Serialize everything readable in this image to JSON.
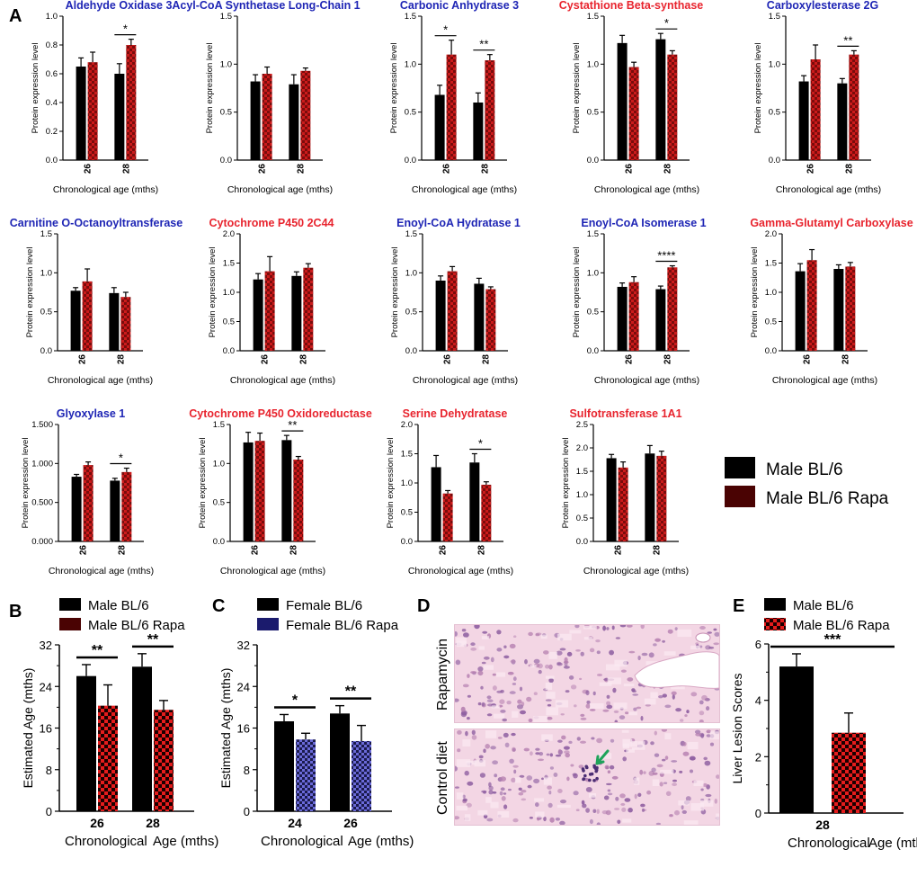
{
  "panel_labels": {
    "a": "A",
    "b": "B",
    "c": "C",
    "d": "D",
    "e": "E"
  },
  "colors": {
    "black_bar": "#000000",
    "rapa_red": "#cc1b1b",
    "rapa_dark": "#4a0303",
    "rapa_blue": "#3a3a8c",
    "title_blue": "#1f26b5",
    "title_red": "#e8242e",
    "lesion_arrow": "#1fa35a"
  },
  "common": {
    "ylabel": "Protein expression level",
    "xlabel": "Chronological age (mths)",
    "age_26": "26",
    "age_28": "28"
  },
  "legend_a": {
    "male": "Male BL/6",
    "male_rapa": "Male BL/6 Rapa"
  },
  "chart_data": [
    {
      "type": "bar",
      "title": "Aldehyde  Oxidase 3",
      "title_color": "blue",
      "categories": [
        "26",
        "28"
      ],
      "ylim": [
        0,
        1.0
      ],
      "yticks": [
        "0.0",
        "0.2",
        "0.4",
        "0.6",
        "0.8",
        "1.0"
      ],
      "tick_values": [
        0,
        0.2,
        0.4,
        0.6,
        0.8,
        1.0
      ],
      "series": [
        {
          "name": "Male BL/6",
          "values": [
            0.65,
            0.6
          ],
          "errors": [
            0.06,
            0.07
          ]
        },
        {
          "name": "Male BL/6 Rapa",
          "values": [
            0.68,
            0.8
          ],
          "errors": [
            0.07,
            0.04
          ]
        }
      ],
      "sig": [
        {
          "group": 1,
          "label": "*"
        }
      ],
      "xlabel": "Chronological age (mths)",
      "ylabel": "Protein expression level"
    },
    {
      "type": "bar",
      "title": "Acyl-CoA Synthetase Long-Chain 1",
      "title_color": "blue",
      "categories": [
        "26",
        "28"
      ],
      "ylim": [
        0,
        1.5
      ],
      "yticks": [
        "0.0",
        "0.5",
        "1.0",
        "1.5"
      ],
      "tick_values": [
        0,
        0.5,
        1.0,
        1.5
      ],
      "series": [
        {
          "name": "Male BL/6",
          "values": [
            0.82,
            0.79
          ],
          "errors": [
            0.07,
            0.1
          ]
        },
        {
          "name": "Male BL/6 Rapa",
          "values": [
            0.9,
            0.93
          ],
          "errors": [
            0.07,
            0.03
          ]
        }
      ],
      "sig": [],
      "xlabel": "Chronological age (mths)",
      "ylabel": "Protein expression level"
    },
    {
      "type": "bar",
      "title": "Carbonic  Anhydrase 3",
      "title_color": "blue",
      "categories": [
        "26",
        "28"
      ],
      "ylim": [
        0,
        1.5
      ],
      "yticks": [
        "0.0",
        "0.5",
        "1.0",
        "1.5"
      ],
      "tick_values": [
        0,
        0.5,
        1.0,
        1.5
      ],
      "series": [
        {
          "name": "Male BL/6",
          "values": [
            0.68,
            0.6
          ],
          "errors": [
            0.1,
            0.1
          ]
        },
        {
          "name": "Male BL/6 Rapa",
          "values": [
            1.1,
            1.04
          ],
          "errors": [
            0.15,
            0.06
          ]
        }
      ],
      "sig": [
        {
          "group": 0,
          "label": "*"
        },
        {
          "group": 1,
          "label": "**"
        }
      ],
      "xlabel": "Chronological age (mths)",
      "ylabel": "Protein expression level"
    },
    {
      "type": "bar",
      "title": "Cystathione Beta-synthase",
      "title_color": "red",
      "categories": [
        "26",
        "28"
      ],
      "ylim": [
        0,
        1.5
      ],
      "yticks": [
        "0.0",
        "0.5",
        "1.0",
        "1.5"
      ],
      "tick_values": [
        0,
        0.5,
        1.0,
        1.5
      ],
      "series": [
        {
          "name": "Male BL/6",
          "values": [
            1.22,
            1.26
          ],
          "errors": [
            0.08,
            0.06
          ]
        },
        {
          "name": "Male BL/6 Rapa",
          "values": [
            0.97,
            1.1
          ],
          "errors": [
            0.05,
            0.04
          ]
        }
      ],
      "sig": [
        {
          "group": 1,
          "label": "*"
        }
      ],
      "xlabel": "Chronological age (mths)",
      "ylabel": "Protein expression level"
    },
    {
      "type": "bar",
      "title": "Carboxylesterase 2G",
      "title_color": "blue",
      "categories": [
        "26",
        "28"
      ],
      "ylim": [
        0,
        1.5
      ],
      "yticks": [
        "0.0",
        "0.5",
        "1.0",
        "1.5"
      ],
      "tick_values": [
        0,
        0.5,
        1.0,
        1.5
      ],
      "series": [
        {
          "name": "Male BL/6",
          "values": [
            0.82,
            0.8
          ],
          "errors": [
            0.06,
            0.05
          ]
        },
        {
          "name": "Male BL/6 Rapa",
          "values": [
            1.05,
            1.1
          ],
          "errors": [
            0.15,
            0.04
          ]
        }
      ],
      "sig": [
        {
          "group": 1,
          "label": "**"
        }
      ],
      "xlabel": "Chronological age (mths)",
      "ylabel": "Protein expression level"
    },
    {
      "type": "bar",
      "title": "Carnitine O-Octanoyltransferase",
      "title_color": "blue",
      "categories": [
        "26",
        "28"
      ],
      "ylim": [
        0,
        1.5
      ],
      "yticks": [
        "0.0",
        "0.5",
        "1.0",
        "1.5"
      ],
      "tick_values": [
        0,
        0.5,
        1.0,
        1.5
      ],
      "series": [
        {
          "name": "Male BL/6",
          "values": [
            0.77,
            0.74
          ],
          "errors": [
            0.04,
            0.07
          ]
        },
        {
          "name": "Male BL/6 Rapa",
          "values": [
            0.89,
            0.69
          ],
          "errors": [
            0.16,
            0.06
          ]
        }
      ],
      "sig": [],
      "xlabel": "Chronological age (mths)",
      "ylabel": "Protein expression level"
    },
    {
      "type": "bar",
      "title": "Cytochrome P450 2C44",
      "title_color": "red",
      "categories": [
        "26",
        "28"
      ],
      "ylim": [
        0,
        2.0
      ],
      "yticks": [
        "0.0",
        "0.5",
        "1.0",
        "1.5",
        "2.0"
      ],
      "tick_values": [
        0,
        0.5,
        1.0,
        1.5,
        2.0
      ],
      "series": [
        {
          "name": "Male BL/6",
          "values": [
            1.22,
            1.28
          ],
          "errors": [
            0.1,
            0.07
          ]
        },
        {
          "name": "Male BL/6 Rapa",
          "values": [
            1.36,
            1.42
          ],
          "errors": [
            0.25,
            0.07
          ]
        }
      ],
      "sig": [],
      "xlabel": "Chronological age (mths)",
      "ylabel": "Protein expression level"
    },
    {
      "type": "bar",
      "title": "Enoyl-CoA Hydratase 1",
      "title_color": "blue",
      "categories": [
        "26",
        "28"
      ],
      "ylim": [
        0,
        1.5
      ],
      "yticks": [
        "0.0",
        "0.5",
        "1.0",
        "1.5"
      ],
      "tick_values": [
        0,
        0.5,
        1.0,
        1.5
      ],
      "series": [
        {
          "name": "Male BL/6",
          "values": [
            0.9,
            0.86
          ],
          "errors": [
            0.06,
            0.07
          ]
        },
        {
          "name": "Male BL/6 Rapa",
          "values": [
            1.02,
            0.79
          ],
          "errors": [
            0.06,
            0.03
          ]
        }
      ],
      "sig": [],
      "xlabel": "Chronological age (mths)",
      "ylabel": "Protein expression level"
    },
    {
      "type": "bar",
      "title": "Enoyl-CoA Isomerase 1",
      "title_color": "blue",
      "categories": [
        "26",
        "28"
      ],
      "ylim": [
        0,
        1.5
      ],
      "yticks": [
        "0.0",
        "0.5",
        "1.0",
        "1.5"
      ],
      "tick_values": [
        0,
        0.5,
        1.0,
        1.5
      ],
      "series": [
        {
          "name": "Male BL/6",
          "values": [
            0.82,
            0.79
          ],
          "errors": [
            0.05,
            0.04
          ]
        },
        {
          "name": "Male BL/6 Rapa",
          "values": [
            0.88,
            1.07
          ],
          "errors": [
            0.07,
            0.02
          ]
        }
      ],
      "sig": [
        {
          "group": 1,
          "label": "****"
        }
      ],
      "xlabel": "Chronological age (mths)",
      "ylabel": "Protein expression level"
    },
    {
      "type": "bar",
      "title": "Gamma-Glutamyl Carboxylase",
      "title_color": "red",
      "categories": [
        "26",
        "28"
      ],
      "ylim": [
        0,
        2.0
      ],
      "yticks": [
        "0.0",
        "0.5",
        "1.0",
        "1.5",
        "2.0"
      ],
      "tick_values": [
        0,
        0.5,
        1.0,
        1.5,
        2.0
      ],
      "series": [
        {
          "name": "Male BL/6",
          "values": [
            1.36,
            1.4
          ],
          "errors": [
            0.13,
            0.07
          ]
        },
        {
          "name": "Male BL/6 Rapa",
          "values": [
            1.55,
            1.44
          ],
          "errors": [
            0.18,
            0.07
          ]
        }
      ],
      "sig": [],
      "xlabel": "Chronological age (mths)",
      "ylabel": "Protein expression level"
    },
    {
      "type": "bar",
      "title": "Glyoxylase 1",
      "title_color": "blue",
      "categories": [
        "26",
        "28"
      ],
      "ylim": [
        0,
        1.5
      ],
      "yticks": [
        "0.000",
        "0.500",
        "1.000",
        "1.500"
      ],
      "tick_values": [
        0,
        0.5,
        1.0,
        1.5
      ],
      "series": [
        {
          "name": "Male BL/6",
          "values": [
            0.83,
            0.78
          ],
          "errors": [
            0.03,
            0.03
          ]
        },
        {
          "name": "Male BL/6 Rapa",
          "values": [
            0.98,
            0.89
          ],
          "errors": [
            0.04,
            0.05
          ]
        }
      ],
      "sig": [
        {
          "group": 1,
          "label": "*"
        }
      ],
      "xlabel": "Chronological age (mths)",
      "ylabel": "Protein expression level"
    },
    {
      "type": "bar",
      "title": "Cytochrome P450 Oxidoreductase",
      "title_color": "red",
      "categories": [
        "26",
        "28"
      ],
      "ylim": [
        0,
        1.5
      ],
      "yticks": [
        "0.0",
        "0.5",
        "1.0",
        "1.5"
      ],
      "tick_values": [
        0,
        0.5,
        1.0,
        1.5
      ],
      "series": [
        {
          "name": "Male BL/6",
          "values": [
            1.27,
            1.3
          ],
          "errors": [
            0.13,
            0.06
          ]
        },
        {
          "name": "Male BL/6 Rapa",
          "values": [
            1.29,
            1.05
          ],
          "errors": [
            0.1,
            0.04
          ]
        }
      ],
      "sig": [
        {
          "group": 1,
          "label": "**"
        }
      ],
      "xlabel": "Chronological age (mths)",
      "ylabel": "Protein expression level"
    },
    {
      "type": "bar",
      "title": "Serine  Dehydratase",
      "title_color": "red",
      "categories": [
        "26",
        "28"
      ],
      "ylim": [
        0,
        2.0
      ],
      "yticks": [
        "0.0",
        "0.5",
        "1.0",
        "1.5",
        "2.0"
      ],
      "tick_values": [
        0,
        0.5,
        1.0,
        1.5,
        2.0
      ],
      "series": [
        {
          "name": "Male BL/6",
          "values": [
            1.27,
            1.35
          ],
          "errors": [
            0.2,
            0.15
          ]
        },
        {
          "name": "Male BL/6 Rapa",
          "values": [
            0.82,
            0.97
          ],
          "errors": [
            0.05,
            0.05
          ]
        }
      ],
      "sig": [
        {
          "group": 1,
          "label": "*"
        }
      ],
      "xlabel": "Chronological age (mths)",
      "ylabel": "Protein expression level"
    },
    {
      "type": "bar",
      "title": "Sulfotransferase 1A1",
      "title_color": "red",
      "categories": [
        "26",
        "28"
      ],
      "ylim": [
        0,
        2.5
      ],
      "yticks": [
        "0.0",
        "0.5",
        "1.0",
        "1.5",
        "2.0",
        "2.5"
      ],
      "tick_values": [
        0,
        0.5,
        1.0,
        1.5,
        2.0,
        2.5
      ],
      "series": [
        {
          "name": "Male BL/6",
          "values": [
            1.78,
            1.88
          ],
          "errors": [
            0.08,
            0.17
          ]
        },
        {
          "name": "Male BL/6 Rapa",
          "values": [
            1.58,
            1.83
          ],
          "errors": [
            0.12,
            0.1
          ]
        }
      ],
      "sig": [],
      "xlabel": "Chronological age (mths)",
      "ylabel": "Protein expression level"
    },
    {
      "type": "bar",
      "panel": "B",
      "legend": [
        "Male BL/6",
        "Male BL/6 Rapa"
      ],
      "categories": [
        "26",
        "28"
      ],
      "ylim": [
        0,
        32
      ],
      "yticks": [
        "0",
        "8",
        "16",
        "24",
        "32"
      ],
      "tick_values": [
        0,
        8,
        16,
        24,
        32
      ],
      "series": [
        {
          "name": "Male BL/6",
          "values": [
            26,
            27.8
          ],
          "errors": [
            2.2,
            2.5
          ]
        },
        {
          "name": "Male BL/6 Rapa",
          "values": [
            20.3,
            19.5
          ],
          "errors": [
            4,
            1.8
          ]
        }
      ],
      "sig": [
        {
          "group": 0,
          "label": "**"
        },
        {
          "group": 1,
          "label": "**"
        }
      ],
      "xlabel_left": "Chronological",
      "xlabel_right": "Age (mths)",
      "ylabel": "Estimated Age (mths)"
    },
    {
      "type": "bar",
      "panel": "C",
      "legend": [
        "Female BL/6",
        "Female BL/6 Rapa"
      ],
      "categories": [
        "24",
        "26"
      ],
      "ylim": [
        0,
        32
      ],
      "yticks": [
        "0",
        "8",
        "16",
        "24",
        "32"
      ],
      "tick_values": [
        0,
        8,
        16,
        24,
        32
      ],
      "series": [
        {
          "name": "Female BL/6",
          "values": [
            17.3,
            18.8
          ],
          "errors": [
            1.3,
            1.5
          ]
        },
        {
          "name": "Female BL/6 Rapa",
          "values": [
            13.8,
            13.5
          ],
          "errors": [
            1.2,
            3
          ]
        }
      ],
      "sig": [
        {
          "group": 0,
          "label": "*"
        },
        {
          "group": 1,
          "label": "**"
        }
      ],
      "xlabel_left": "Chronological",
      "xlabel_right": "Age (mths)",
      "ylabel": "Estimated Age (mths)"
    },
    {
      "type": "bar",
      "panel": "E",
      "legend": [
        "Male BL/6",
        "Male BL/6 Rapa"
      ],
      "categories": [
        "28"
      ],
      "ylim": [
        0,
        6
      ],
      "yticks": [
        "0",
        "2",
        "4",
        "6"
      ],
      "tick_values": [
        0,
        2,
        4,
        6
      ],
      "series": [
        {
          "name": "Male BL/6",
          "values": [
            5.2
          ],
          "errors": [
            0.45
          ]
        },
        {
          "name": "Male BL/6 Rapa",
          "values": [
            2.85
          ],
          "errors": [
            0.7
          ]
        }
      ],
      "sig": [
        {
          "group": 0,
          "label": "***",
          "span": "wide"
        }
      ],
      "xlabel_left": "Chronological",
      "xlabel_right": "Age (mths)",
      "ylabel": "Liver Lesion Scores"
    }
  ],
  "histology": {
    "top_label": "Rapamycin",
    "bottom_label": "Control diet"
  }
}
